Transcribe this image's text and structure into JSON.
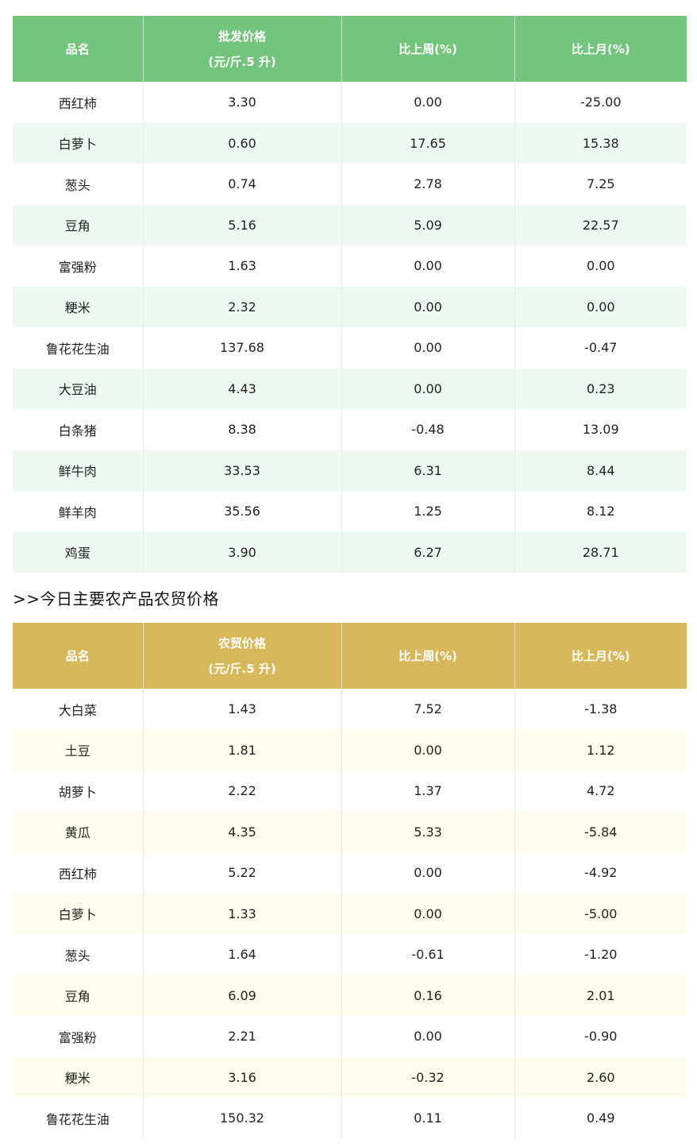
{
  "wholesale_table": {
    "header": {
      "name": "品名",
      "price_line1": "批发价格",
      "price_line2": "(元/斤.5 升)",
      "week": "比上周(%)",
      "month": "比上月(%)"
    },
    "rows": [
      {
        "name": "西红柿",
        "price": "3.30",
        "week": "0.00",
        "month": "-25.00"
      },
      {
        "name": "白萝卜",
        "price": "0.60",
        "week": "17.65",
        "month": "15.38"
      },
      {
        "name": "葱头",
        "price": "0.74",
        "week": "2.78",
        "month": "7.25"
      },
      {
        "name": "豆角",
        "price": "5.16",
        "week": "5.09",
        "month": "22.57"
      },
      {
        "name": "富强粉",
        "price": "1.63",
        "week": "0.00",
        "month": "0.00"
      },
      {
        "name": "粳米",
        "price": "2.32",
        "week": "0.00",
        "month": "0.00"
      },
      {
        "name": "鲁花花生油",
        "price": "137.68",
        "week": "0.00",
        "month": "-0.47"
      },
      {
        "name": "大豆油",
        "price": "4.43",
        "week": "0.00",
        "month": "0.23"
      },
      {
        "name": "白条猪",
        "price": "8.38",
        "week": "-0.48",
        "month": "13.09"
      },
      {
        "name": "鲜牛肉",
        "price": "33.53",
        "week": "6.31",
        "month": "8.44"
      },
      {
        "name": "鲜羊肉",
        "price": "35.56",
        "week": "1.25",
        "month": "8.12"
      },
      {
        "name": "鸡蛋",
        "price": "3.90",
        "week": "6.27",
        "month": "28.71"
      }
    ]
  },
  "section_heading": ">>今日主要农产品农贸价格",
  "retail_table": {
    "header": {
      "name": "品名",
      "price_line1": "农贸价格",
      "price_line2": "(元/斤.5 升)",
      "week": "比上周(%)",
      "month": "比上月(%)"
    },
    "rows": [
      {
        "name": "大白菜",
        "price": "1.43",
        "week": "7.52",
        "month": "-1.38"
      },
      {
        "name": "土豆",
        "price": "1.81",
        "week": "0.00",
        "month": "1.12"
      },
      {
        "name": "胡萝卜",
        "price": "2.22",
        "week": "1.37",
        "month": "4.72"
      },
      {
        "name": "黄瓜",
        "price": "4.35",
        "week": "5.33",
        "month": "-5.84"
      },
      {
        "name": "西红柿",
        "price": "5.22",
        "week": "0.00",
        "month": "-4.92"
      },
      {
        "name": "白萝卜",
        "price": "1.33",
        "week": "0.00",
        "month": "-5.00"
      },
      {
        "name": "葱头",
        "price": "1.64",
        "week": "-0.61",
        "month": "-1.20"
      },
      {
        "name": "豆角",
        "price": "6.09",
        "week": "0.16",
        "month": "2.01"
      },
      {
        "name": "富强粉",
        "price": "2.21",
        "week": "0.00",
        "month": "-0.90"
      },
      {
        "name": "粳米",
        "price": "3.16",
        "week": "-0.32",
        "month": "2.60"
      },
      {
        "name": "鲁花花生油",
        "price": "150.32",
        "week": "0.11",
        "month": "0.49"
      }
    ]
  },
  "colors": {
    "wholesale_header": "#73c47c",
    "wholesale_stripe": "#eefaf1",
    "retail_header": "#d7b95b",
    "retail_stripe": "#fefcec"
  }
}
